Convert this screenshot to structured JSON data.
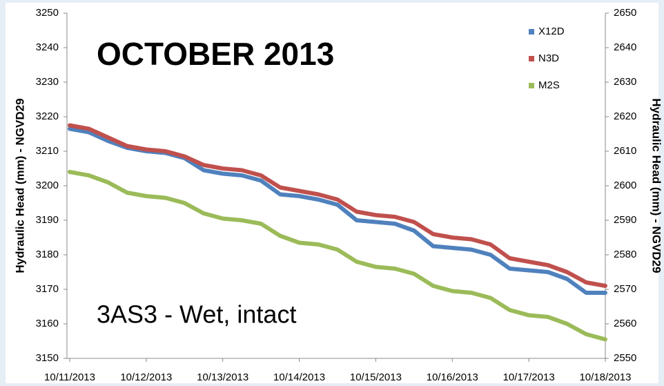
{
  "chart_data": {
    "type": "line",
    "title": "OCTOBER 2013",
    "annotation": "3AS3 - Wet, intact",
    "y_label": "Hydraulic Head (mm) - NGVD29",
    "y2_label": "Hydraulic Head (mm) - NGVD29",
    "categories": [
      "10/11/2013",
      null,
      null,
      null,
      "10/12/2013",
      null,
      null,
      null,
      "10/13/2013",
      null,
      null,
      null,
      "10/14/2013",
      null,
      null,
      null,
      "10/15/2013",
      null,
      null,
      null,
      "10/16/2013",
      null,
      null,
      null,
      "10/17/2013",
      null,
      null,
      null,
      "10/18/2013"
    ],
    "series": [
      {
        "name": "X12D",
        "color": "#4f81bd",
        "values": [
          3216.5,
          3215.5,
          3213,
          3211,
          3210,
          3209.5,
          3208,
          3204.5,
          3203.5,
          3203,
          3201.5,
          3197.5,
          3197,
          3196,
          3194.5,
          3190,
          3189.5,
          3189,
          3187,
          3182.5,
          3182,
          3181.5,
          3180,
          3176,
          3175.5,
          3175,
          3173,
          3169,
          3169
        ]
      },
      {
        "name": "N3D",
        "color": "#c0504d",
        "values": [
          3217.5,
          3216.5,
          3214,
          3211.5,
          3210.5,
          3210,
          3208.5,
          3206,
          3205,
          3204.5,
          3203,
          3199.5,
          3198.5,
          3197.5,
          3196,
          3192.5,
          3191.5,
          3191,
          3189.5,
          3186,
          3185,
          3184.5,
          3183,
          3179,
          3178,
          3177,
          3175,
          3172,
          3171
        ]
      },
      {
        "name": "M2S",
        "color": "#9bbb59",
        "axis": "y2",
        "values": [
          2604,
          2603,
          2601,
          2598,
          2597,
          2596.5,
          2595,
          2592,
          2590.5,
          2590,
          2589,
          2585.5,
          2583.5,
          2583,
          2581.5,
          2578,
          2576.5,
          2576,
          2574.5,
          2571,
          2569.5,
          2569,
          2567.5,
          2564,
          2562.5,
          2562,
          2560,
          2557,
          2555.5
        ]
      }
    ],
    "ylim": [
      3150,
      3250
    ],
    "yticks": [
      3150,
      3160,
      3170,
      3180,
      3190,
      3200,
      3210,
      3220,
      3230,
      3240,
      3250
    ],
    "y2lim": [
      2550,
      2650
    ],
    "y2ticks": [
      2550,
      2560,
      2570,
      2580,
      2590,
      2600,
      2610,
      2620,
      2630,
      2640,
      2650
    ],
    "legend": "top-right"
  }
}
